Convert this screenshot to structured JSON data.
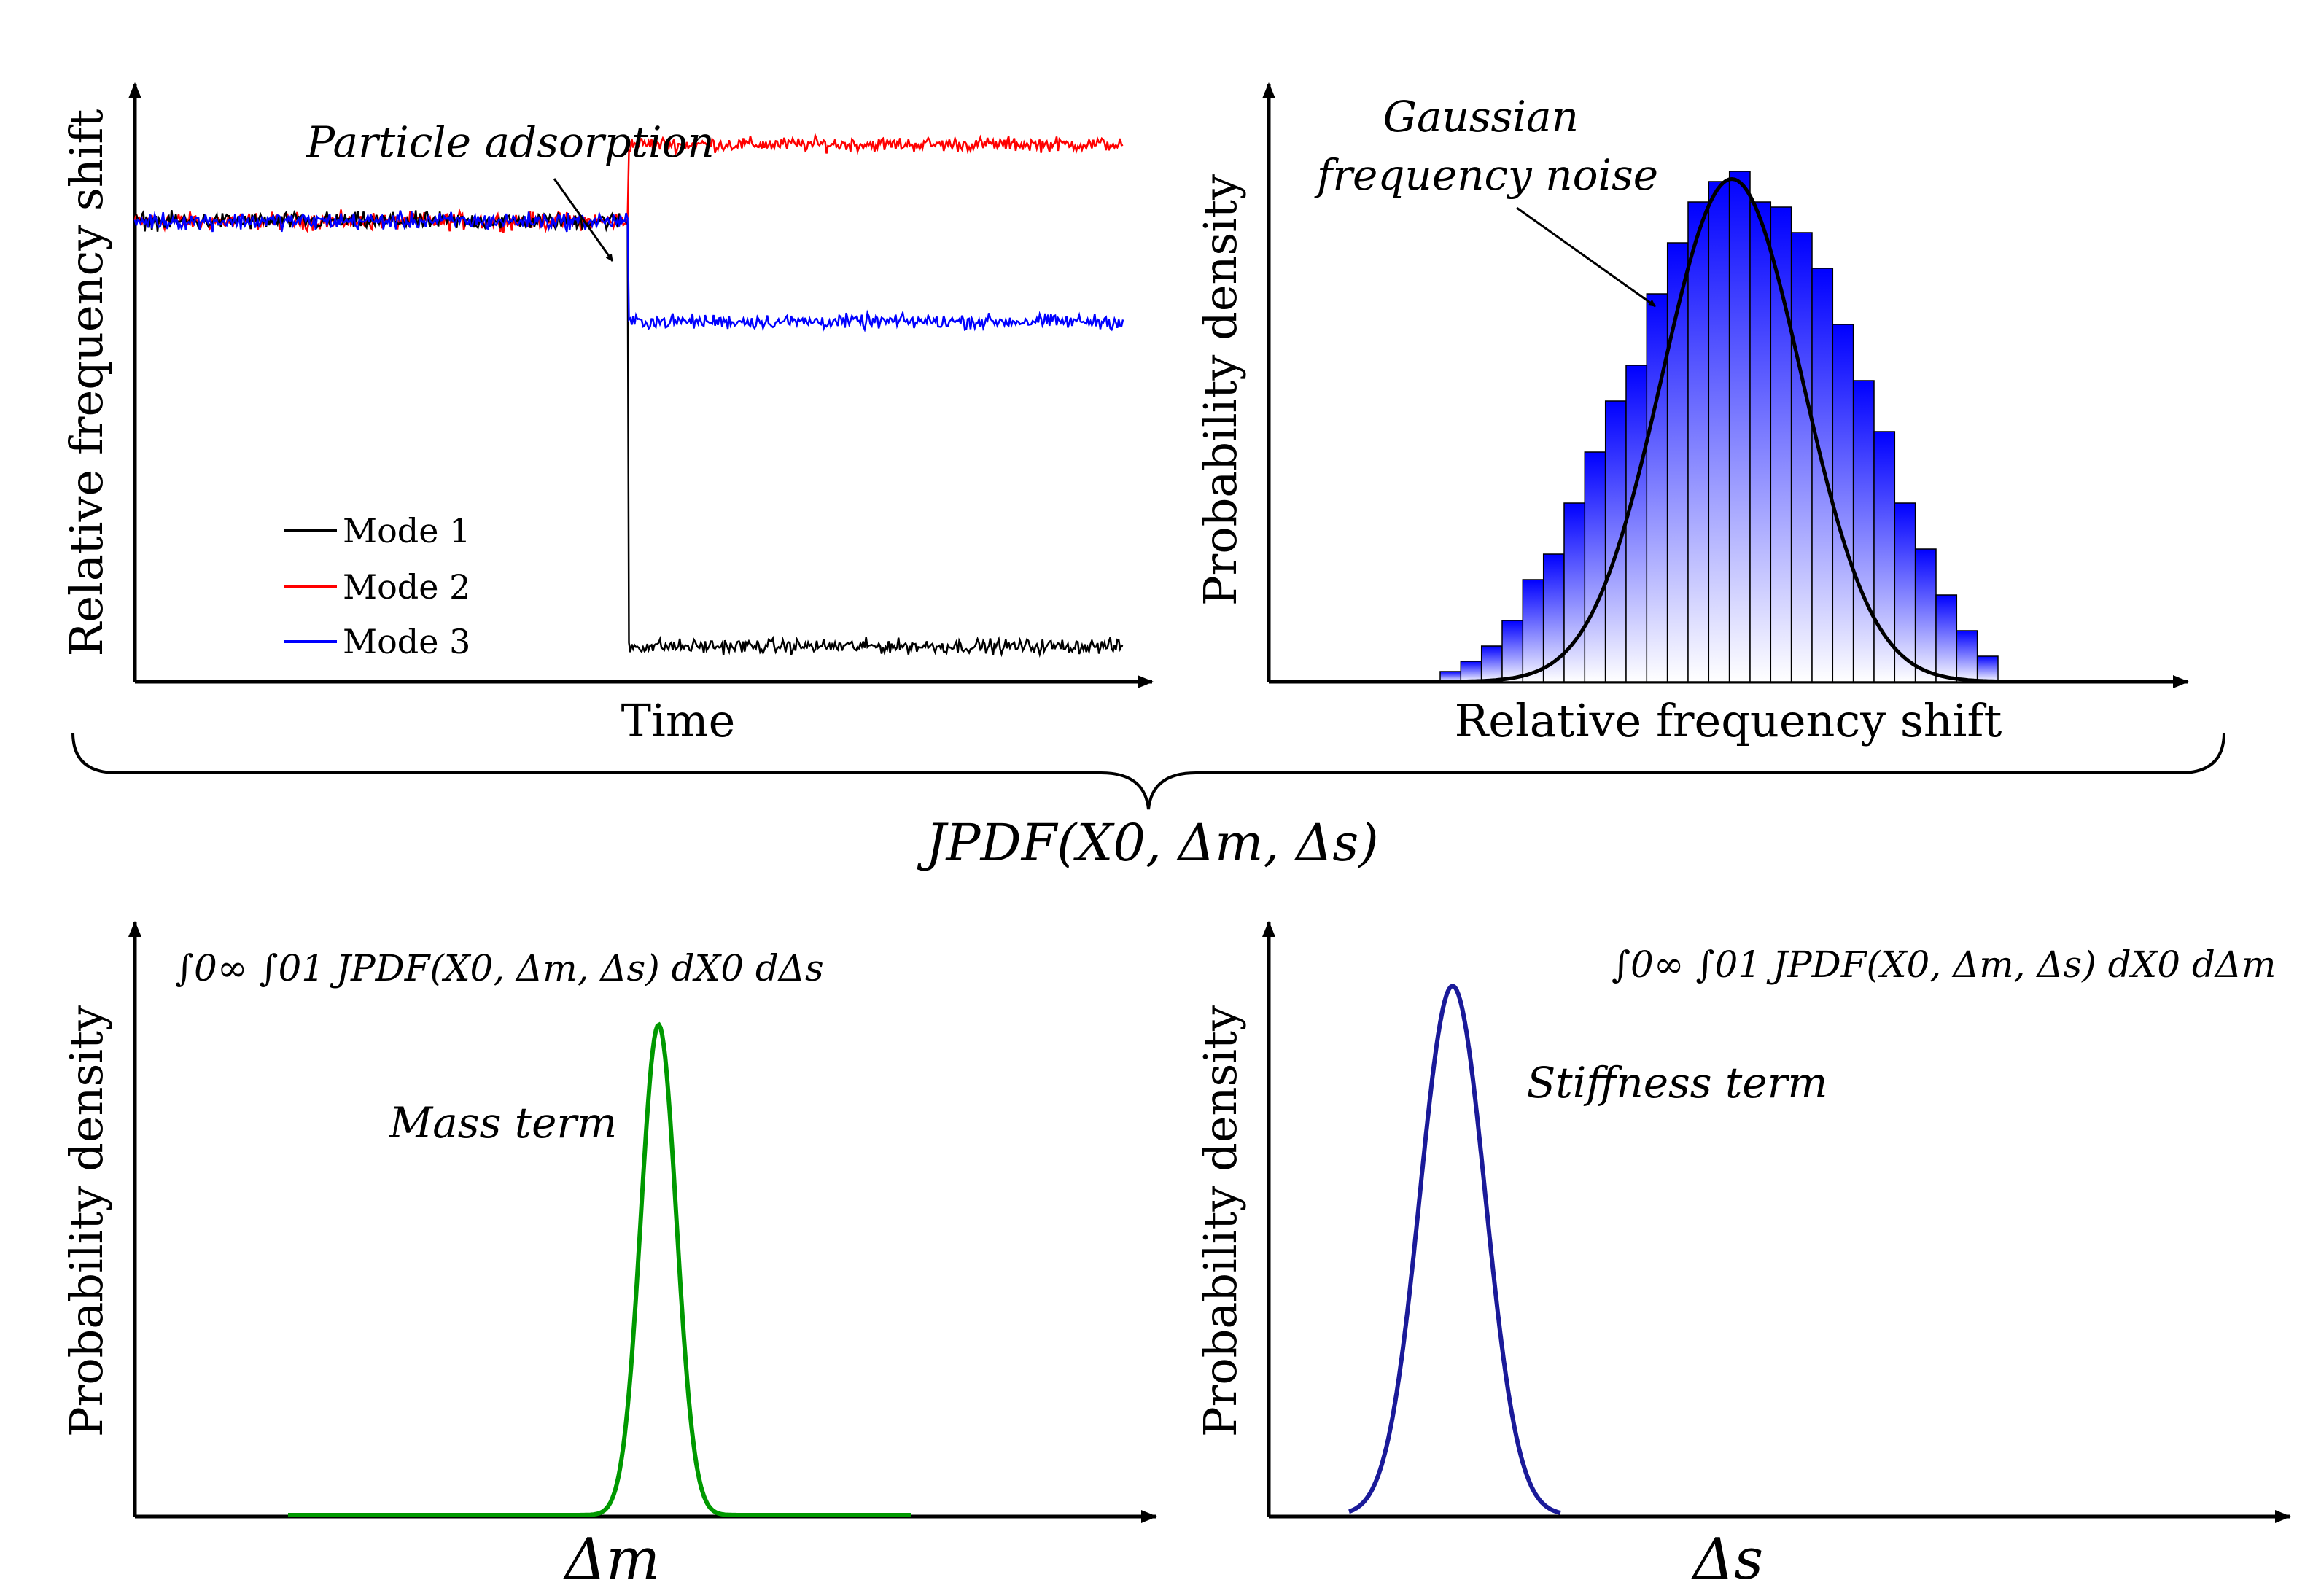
{
  "figure_title": "JPDF(X0, Δm, Δs)",
  "chart_data": [
    {
      "type": "line",
      "panel": "top-left",
      "title": "",
      "xlabel": "Time",
      "ylabel": "Relative frequency shift",
      "annotation": "Particle adsorption",
      "event_fraction": 0.5,
      "ylim": [
        0,
        1
      ],
      "legend_position": "bottom-left",
      "series": [
        {
          "name": "Mode 1",
          "color": "#000000",
          "before": 0.78,
          "after": 0.06,
          "noise": 0.018
        },
        {
          "name": "Mode 2",
          "color": "#ff0000",
          "before": 0.78,
          "after": 0.91,
          "noise": 0.018
        },
        {
          "name": "Mode 3",
          "color": "#0000ff",
          "before": 0.78,
          "after": 0.61,
          "noise": 0.018
        }
      ]
    },
    {
      "type": "bar",
      "panel": "top-right",
      "title": "",
      "xlabel": "Relative frequency shift",
      "ylabel": "Probability density",
      "annotation": "Gaussian\nfrequency noise",
      "fit": {
        "type": "gaussian",
        "mean": 0.5,
        "sd": 0.12,
        "color": "#000000"
      },
      "bar_color": "#0000ff",
      "bins": 27,
      "values": [
        0.02,
        0.04,
        0.07,
        0.12,
        0.2,
        0.25,
        0.35,
        0.45,
        0.55,
        0.62,
        0.76,
        0.86,
        0.94,
        0.98,
        1.0,
        0.94,
        0.93,
        0.88,
        0.81,
        0.7,
        0.59,
        0.49,
        0.35,
        0.26,
        0.17,
        0.1,
        0.05
      ],
      "ylim": [
        0,
        1.05
      ]
    },
    {
      "type": "line",
      "panel": "bottom-left",
      "title": "",
      "xlabel": "Δm",
      "ylabel": "Probability density",
      "annotation": "Mass term",
      "formula": "∫0∞ ∫01 JPDF(X0, Δm, Δs) dX0 dΔs",
      "series": [
        {
          "name": "Mass term",
          "color": "#009900",
          "mean": 0.53,
          "sd": 0.018,
          "peak": 0.87
        }
      ],
      "xlim": [
        0,
        1
      ],
      "ylim": [
        0,
        1
      ]
    },
    {
      "type": "line",
      "panel": "bottom-right",
      "title": "",
      "xlabel": "Δs",
      "ylabel": "Probability density",
      "annotation": "Stiffness term",
      "formula": "∫0∞ ∫01 JPDF(X0, Δm, Δs) dX0 dΔm",
      "series": [
        {
          "name": "Stiffness term",
          "color": "#1a1a99",
          "mean": 0.18,
          "sd": 0.032,
          "peak": 0.97
        }
      ],
      "xlim": [
        0,
        1
      ],
      "ylim": [
        0,
        1
      ]
    }
  ]
}
